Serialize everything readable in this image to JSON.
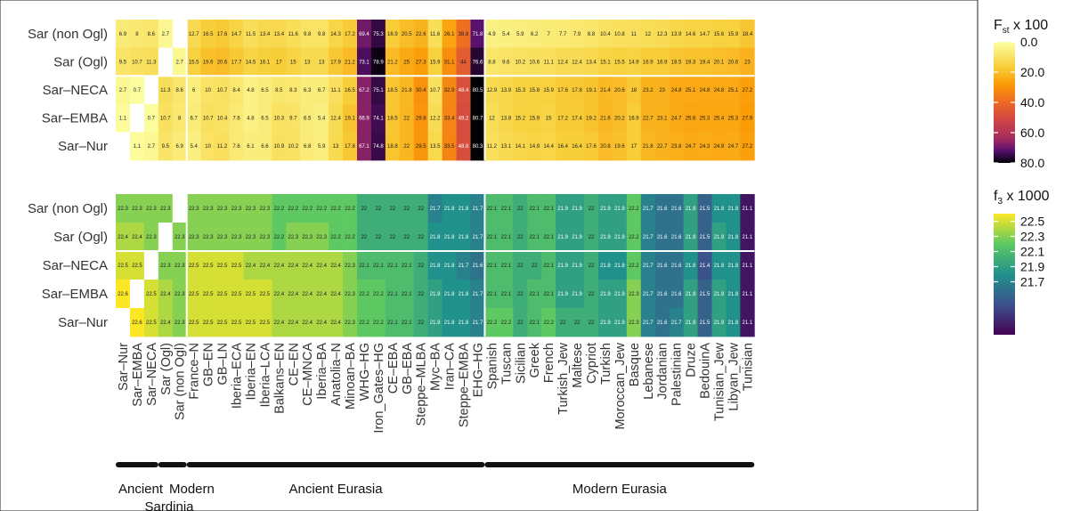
{
  "chart_data": [
    {
      "type": "heatmap",
      "legend_title": "F",
      "legend_title_sub": "st",
      "legend_title_suffix": " x 100",
      "legend_ticks": [
        "0.0",
        "20.0",
        "40.0",
        "60.0",
        "80.0"
      ],
      "legend_tick_values": [
        0,
        20,
        40,
        60,
        80
      ],
      "colormap": "inferno-reversed",
      "range": [
        0,
        80
      ],
      "rows": [
        "Sar (non Ogl)",
        "Sar (Ogl)",
        "Sar–NECA",
        "Sar–EMBA",
        "Sar–Nur"
      ],
      "values": [
        [
          6.9,
          8,
          8.6,
          2.7,
          null,
          12.7,
          16.5,
          17.6,
          14.7,
          11.5,
          13.4,
          13.4,
          11.6,
          9.8,
          9.8,
          14.3,
          17.2,
          69.4,
          75.3,
          16.9,
          20.5,
          22.6,
          11.6,
          26.1,
          38.8,
          71.8,
          4.9,
          5.4,
          5.9,
          6.2,
          7,
          7.7,
          7.9,
          8.8,
          10.4,
          10.8,
          11,
          12,
          12.3,
          13.9,
          14.6,
          14.7,
          15.6,
          15.9,
          18.4
        ],
        [
          9.5,
          10.7,
          11.3,
          null,
          2.7,
          15.5,
          19.6,
          20.6,
          17.7,
          14.5,
          16.1,
          17,
          15,
          13,
          13,
          17.9,
          21.2,
          73.1,
          78.9,
          21.2,
          25,
          27.3,
          15.9,
          31.1,
          44,
          76.6,
          8.8,
          9.6,
          10.2,
          10.6,
          11.1,
          12.4,
          12.4,
          13.4,
          15.1,
          15.5,
          14.9,
          16.9,
          16.9,
          18.5,
          19.3,
          19.4,
          20.1,
          20.6,
          23
        ],
        [
          2.7,
          0.7,
          null,
          11.3,
          8.6,
          6,
          10,
          10.7,
          8.4,
          4.8,
          6.5,
          8.5,
          8.3,
          6.3,
          6.7,
          11.1,
          16.5,
          67.2,
          75.1,
          18.5,
          21.8,
          30.4,
          10.7,
          32.9,
          48.4,
          80.5,
          12.9,
          13.9,
          15.3,
          15.8,
          15.9,
          17.6,
          17.8,
          19.1,
          21.4,
          20.6,
          18,
          23.2,
          23,
          24.8,
          25.1,
          24.8,
          24.8,
          25.1,
          27.2
        ],
        [
          1.1,
          null,
          0.7,
          10.7,
          8,
          6.7,
          10.7,
          10.4,
          7.6,
          4.8,
          6.5,
          10.3,
          9.7,
          6.5,
          5.4,
          12.4,
          19.1,
          66.9,
          74.1,
          18.5,
          22,
          29.8,
          12.2,
          33.4,
          49.2,
          80.7,
          12,
          13.8,
          15.2,
          15.9,
          15,
          17.2,
          17.4,
          19.2,
          21.6,
          20.2,
          16.9,
          22.7,
          23.1,
          24.7,
          25.6,
          25.3,
          25.4,
          25.3,
          27.9
        ],
        [
          null,
          1.1,
          2.7,
          9.5,
          6.9,
          5.4,
          10,
          11.2,
          7.6,
          6.1,
          6.6,
          10.9,
          10.2,
          6.8,
          5.9,
          13,
          17.8,
          67.1,
          74.8,
          18.8,
          22,
          29.5,
          13.5,
          33.5,
          48.8,
          80.3,
          11.2,
          13.1,
          14.1,
          14.9,
          14.4,
          16.4,
          16.4,
          17.6,
          20.8,
          19.6,
          17,
          21.8,
          22.7,
          23.8,
          24.7,
          24.3,
          24.9,
          24.7,
          27.2
        ]
      ]
    },
    {
      "type": "heatmap",
      "legend_title": "f",
      "legend_title_sub": "3",
      "legend_title_suffix": " x 1000",
      "legend_ticks": [
        "22.5",
        "22.3",
        "22.1",
        "21.9",
        "21.7"
      ],
      "legend_tick_values": [
        22.5,
        22.3,
        22.1,
        21.9,
        21.7
      ],
      "colormap": "viridis",
      "range": [
        21.0,
        22.6
      ],
      "rows": [
        "Sar (non Ogl)",
        "Sar (Ogl)",
        "Sar–NECA",
        "Sar–EMBA",
        "Sar–Nur"
      ],
      "values": [
        [
          22.3,
          22.3,
          22.3,
          22.3,
          null,
          22.3,
          22.3,
          22.3,
          22.3,
          22.3,
          22.3,
          22.2,
          22.2,
          22.2,
          22.2,
          22.2,
          22.2,
          22,
          22,
          22,
          22,
          22,
          21.7,
          21.8,
          21.8,
          21.7,
          22.1,
          22.1,
          22,
          22.1,
          22.1,
          21.9,
          21.9,
          22,
          21.9,
          21.9,
          22.2,
          21.7,
          21.6,
          21.6,
          21.9,
          21.5,
          21.8,
          21.8,
          21.1
        ],
        [
          22.4,
          22.4,
          22.3,
          null,
          22.3,
          22.3,
          22.3,
          22.3,
          22.3,
          22.3,
          22.3,
          22.2,
          22.3,
          22.3,
          22.3,
          22.2,
          22.2,
          22,
          22,
          22,
          22,
          22,
          21.8,
          21.8,
          21.8,
          21.7,
          22.1,
          22.1,
          22,
          22.1,
          22.1,
          21.9,
          21.9,
          22,
          21.9,
          21.9,
          22.2,
          21.7,
          21.6,
          21.6,
          21.9,
          21.5,
          21.9,
          21.8,
          21.1
        ],
        [
          22.5,
          22.5,
          null,
          22.3,
          22.3,
          22.5,
          22.5,
          22.5,
          22.5,
          22.4,
          22.4,
          22.4,
          22.4,
          22.4,
          22.4,
          22.4,
          22.3,
          22.1,
          22.1,
          22.1,
          22.1,
          22,
          21.8,
          21.8,
          21.7,
          21.6,
          22.1,
          22.1,
          22,
          22,
          22.1,
          21.9,
          21.9,
          22,
          21.8,
          21.8,
          22.2,
          21.7,
          21.6,
          21.6,
          21.8,
          21.4,
          21.8,
          21.8,
          21.1
        ],
        [
          22.6,
          null,
          22.5,
          22.4,
          22.3,
          22.5,
          22.5,
          22.5,
          22.5,
          22.5,
          22.5,
          22.4,
          22.4,
          22.4,
          22.4,
          22.4,
          22.3,
          22.2,
          22.2,
          22.1,
          22.1,
          22,
          21.9,
          21.8,
          21.8,
          21.7,
          22.1,
          22.1,
          22,
          22.1,
          22.1,
          21.9,
          21.9,
          22,
          21.9,
          21.9,
          22.3,
          21.7,
          21.6,
          21.6,
          21.9,
          21.5,
          21.9,
          21.8,
          21.1
        ],
        [
          null,
          22.6,
          22.5,
          22.4,
          22.3,
          22.5,
          22.5,
          22.5,
          22.5,
          22.5,
          22.5,
          22.4,
          22.4,
          22.4,
          22.4,
          22.4,
          22.3,
          22.2,
          22.2,
          22.1,
          22.1,
          22,
          21.9,
          21.8,
          21.8,
          21.7,
          22.2,
          22.2,
          22,
          22.1,
          22.2,
          22,
          22,
          22,
          21.9,
          21.9,
          22.3,
          21.7,
          21.6,
          21.7,
          21.9,
          21.5,
          21.9,
          21.8,
          21.1
        ]
      ]
    }
  ],
  "columns": [
    "Sar–Nur",
    "Sar–EMBA",
    "Sar–NECA",
    "Sar (Ogl)",
    "Sar (non Ogl)",
    "France–N",
    "GB–EN",
    "GB–LN",
    "Iberia–ECA",
    "Iberia–EN",
    "Iberia–LCA",
    "Balkans–EN",
    "CE–EN",
    "CE–MNCA",
    "Iberia–BA",
    "Anatolia–N",
    "Minoan–BA",
    "WHG–HG",
    "Iron_Gates–HG",
    "CE–EBA",
    "GB–EBA",
    "Steppe–MLBA",
    "Myc–BA",
    "Iran–CA",
    "Steppe–EMBA",
    "EHG–HG",
    "Spanish",
    "Tuscan",
    "Sicilian",
    "Greek",
    "French",
    "Turkish_Jew",
    "Maltese",
    "Cypriot",
    "Turkish",
    "Moroccan_Jew",
    "Basque",
    "Lebanese",
    "Jordanian",
    "Palestinian",
    "Druze",
    "BedouinA",
    "Tunisian_Jew",
    "Libyan_Jew",
    "Tunisian"
  ],
  "groups": [
    {
      "label": "Ancient",
      "from": 0,
      "to": 2
    },
    {
      "label": "Modern",
      "from": 3,
      "to": 4
    },
    {
      "label": "Ancient Eurasia",
      "from": 5,
      "to": 25
    },
    {
      "label": "Modern Eurasia",
      "from": 26,
      "to": 44
    }
  ],
  "group_sublabel": "Sardinia"
}
